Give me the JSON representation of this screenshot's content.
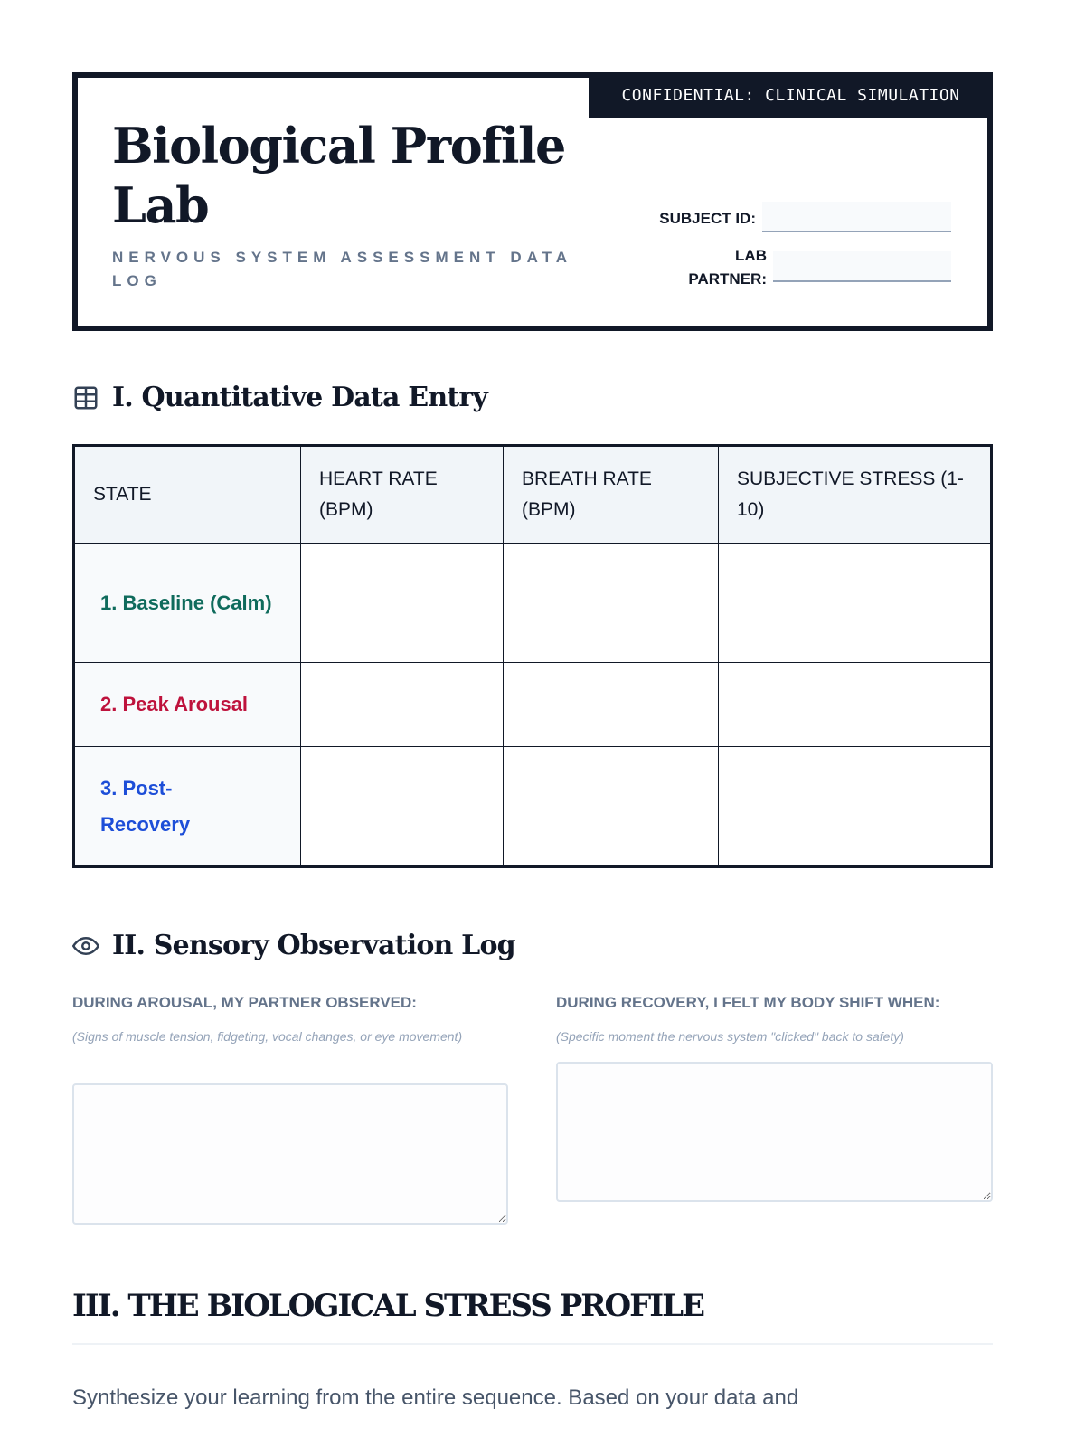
{
  "header": {
    "badge": "CONFIDENTIAL: CLINICAL SIMULATION",
    "title": "Biological Profile Lab",
    "subtitle": "NERVOUS SYSTEM ASSESSMENT DATA LOG",
    "subject_id_label": "SUBJECT ID:",
    "lab_partner_label": "LAB PARTNER:",
    "subject_id_value": "",
    "lab_partner_value": ""
  },
  "section1": {
    "icon": "table-grid-icon",
    "title": "I. Quantitative Data Entry",
    "columns": [
      "STATE",
      "HEART RATE (BPM)",
      "BREATH RATE (BPM)",
      "SUBJECTIVE STRESS (1-10)"
    ],
    "rows": [
      {
        "state": "1. Baseline (Calm)",
        "color": "#0f6b5c"
      },
      {
        "state": "2. Peak Arousal",
        "color": "#be123c"
      },
      {
        "state": "3. Post-Recovery",
        "color": "#1d4ed8"
      }
    ]
  },
  "section2": {
    "icon": "eye-icon",
    "title": "II. Sensory Observation Log",
    "left": {
      "label": "DURING AROUSAL, MY PARTNER OBSERVED:",
      "hint": "(Signs of muscle tension, fidgeting, vocal changes, or eye movement)"
    },
    "right": {
      "label": "DURING RECOVERY, I FELT MY BODY SHIFT WHEN:",
      "hint": "(Specific moment the nervous system \"clicked\" back to safety)"
    }
  },
  "section3": {
    "title": "III. THE BIOLOGICAL STRESS PROFILE",
    "intro": "Synthesize your learning from the entire sequence. Based on your data and"
  }
}
